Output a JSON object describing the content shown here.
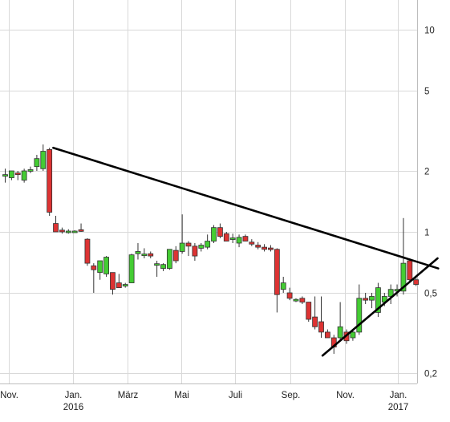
{
  "chart_data": {
    "type": "candlestick",
    "y_scale": "log",
    "ylim": [
      0.18,
      14
    ],
    "y_ticks": [
      {
        "value": 10,
        "label": "10"
      },
      {
        "value": 5,
        "label": "5"
      },
      {
        "value": 2,
        "label": "2"
      },
      {
        "value": 1,
        "label": "1"
      },
      {
        "value": 0.5,
        "label": "0,5"
      },
      {
        "value": 0.2,
        "label": "0,2"
      }
    ],
    "x_ticks": [
      {
        "index": 0.6,
        "label": "Nov."
      },
      {
        "index": 10.7,
        "label": "Jan.",
        "sublabel": "2016"
      },
      {
        "index": 19.3,
        "label": "März"
      },
      {
        "index": 27.8,
        "label": "Mai"
      },
      {
        "index": 36.3,
        "label": "Juli"
      },
      {
        "index": 45.1,
        "label": "Sep."
      },
      {
        "index": 53.8,
        "label": "Nov."
      },
      {
        "index": 62.1,
        "label": "Jan.",
        "sublabel": "2017"
      }
    ],
    "x_range": [
      0,
      68.5
    ],
    "candles": [
      {
        "o": 1.9,
        "h": 2.05,
        "l": 1.75,
        "c": 1.9
      },
      {
        "o": 1.85,
        "h": 2.0,
        "l": 1.8,
        "c": 2.0
      },
      {
        "o": 1.95,
        "h": 2.0,
        "l": 1.8,
        "c": 1.92
      },
      {
        "o": 1.8,
        "h": 2.05,
        "l": 1.75,
        "c": 2.0
      },
      {
        "o": 2.0,
        "h": 2.1,
        "l": 1.95,
        "c": 2.02
      },
      {
        "o": 2.1,
        "h": 2.4,
        "l": 2.0,
        "c": 2.3
      },
      {
        "o": 2.05,
        "h": 2.7,
        "l": 2.0,
        "c": 2.5
      },
      {
        "o": 2.55,
        "h": 2.6,
        "l": 1.2,
        "c": 1.25
      },
      {
        "o": 1.1,
        "h": 1.2,
        "l": 1.0,
        "c": 1.0
      },
      {
        "o": 1.02,
        "h": 1.05,
        "l": 0.98,
        "c": 1.0
      },
      {
        "o": 1.0,
        "h": 1.03,
        "l": 0.98,
        "c": 1.0
      },
      {
        "o": 1.0,
        "h": 1.02,
        "l": 0.99,
        "c": 1.0
      },
      {
        "o": 1.02,
        "h": 1.1,
        "l": 1.0,
        "c": 1.01
      },
      {
        "o": 0.92,
        "h": 0.93,
        "l": 0.68,
        "c": 0.7
      },
      {
        "o": 0.68,
        "h": 0.7,
        "l": 0.5,
        "c": 0.65
      },
      {
        "o": 0.63,
        "h": 0.72,
        "l": 0.58,
        "c": 0.72
      },
      {
        "o": 0.62,
        "h": 0.76,
        "l": 0.6,
        "c": 0.75
      },
      {
        "o": 0.63,
        "h": 0.63,
        "l": 0.49,
        "c": 0.52
      },
      {
        "o": 0.56,
        "h": 0.62,
        "l": 0.53,
        "c": 0.53
      },
      {
        "o": 0.54,
        "h": 0.56,
        "l": 0.53,
        "c": 0.55
      },
      {
        "o": 0.56,
        "h": 0.78,
        "l": 0.56,
        "c": 0.77
      },
      {
        "o": 0.78,
        "h": 0.88,
        "l": 0.73,
        "c": 0.8
      },
      {
        "o": 0.77,
        "h": 0.83,
        "l": 0.74,
        "c": 0.77
      },
      {
        "o": 0.78,
        "h": 0.8,
        "l": 0.74,
        "c": 0.76
      },
      {
        "o": 0.69,
        "h": 0.72,
        "l": 0.6,
        "c": 0.69
      },
      {
        "o": 0.66,
        "h": 0.7,
        "l": 0.64,
        "c": 0.69
      },
      {
        "o": 0.66,
        "h": 0.82,
        "l": 0.65,
        "c": 0.82
      },
      {
        "o": 0.81,
        "h": 0.85,
        "l": 0.7,
        "c": 0.72
      },
      {
        "o": 0.8,
        "h": 1.22,
        "l": 0.78,
        "c": 0.88
      },
      {
        "o": 0.88,
        "h": 0.9,
        "l": 0.76,
        "c": 0.85
      },
      {
        "o": 0.85,
        "h": 0.88,
        "l": 0.72,
        "c": 0.76
      },
      {
        "o": 0.83,
        "h": 0.88,
        "l": 0.8,
        "c": 0.86
      },
      {
        "o": 0.84,
        "h": 0.97,
        "l": 0.82,
        "c": 0.9
      },
      {
        "o": 0.9,
        "h": 1.08,
        "l": 0.88,
        "c": 1.05
      },
      {
        "o": 1.05,
        "h": 1.1,
        "l": 0.93,
        "c": 0.95
      },
      {
        "o": 0.98,
        "h": 1.0,
        "l": 0.9,
        "c": 0.9
      },
      {
        "o": 0.92,
        "h": 0.98,
        "l": 0.88,
        "c": 0.93
      },
      {
        "o": 0.88,
        "h": 0.97,
        "l": 0.84,
        "c": 0.94
      },
      {
        "o": 0.95,
        "h": 0.97,
        "l": 0.9,
        "c": 0.9
      },
      {
        "o": 0.89,
        "h": 0.92,
        "l": 0.85,
        "c": 0.87
      },
      {
        "o": 0.86,
        "h": 0.89,
        "l": 0.82,
        "c": 0.84
      },
      {
        "o": 0.84,
        "h": 0.87,
        "l": 0.8,
        "c": 0.82
      },
      {
        "o": 0.83,
        "h": 0.86,
        "l": 0.8,
        "c": 0.82
      },
      {
        "o": 0.82,
        "h": 0.83,
        "l": 0.4,
        "c": 0.49
      },
      {
        "o": 0.52,
        "h": 0.6,
        "l": 0.5,
        "c": 0.56
      },
      {
        "o": 0.5,
        "h": 0.53,
        "l": 0.46,
        "c": 0.47
      },
      {
        "o": 0.46,
        "h": 0.47,
        "l": 0.45,
        "c": 0.46
      },
      {
        "o": 0.47,
        "h": 0.48,
        "l": 0.44,
        "c": 0.45
      },
      {
        "o": 0.45,
        "h": 0.45,
        "l": 0.36,
        "c": 0.37
      },
      {
        "o": 0.38,
        "h": 0.48,
        "l": 0.33,
        "c": 0.34
      },
      {
        "o": 0.36,
        "h": 0.48,
        "l": 0.3,
        "c": 0.32
      },
      {
        "o": 0.32,
        "h": 0.33,
        "l": 0.3,
        "c": 0.3
      },
      {
        "o": 0.3,
        "h": 0.31,
        "l": 0.25,
        "c": 0.27
      },
      {
        "o": 0.3,
        "h": 0.45,
        "l": 0.29,
        "c": 0.34
      },
      {
        "o": 0.32,
        "h": 0.33,
        "l": 0.28,
        "c": 0.29
      },
      {
        "o": 0.3,
        "h": 0.33,
        "l": 0.29,
        "c": 0.32
      },
      {
        "o": 0.32,
        "h": 0.55,
        "l": 0.31,
        "c": 0.47
      },
      {
        "o": 0.47,
        "h": 0.5,
        "l": 0.44,
        "c": 0.46
      },
      {
        "o": 0.46,
        "h": 0.5,
        "l": 0.42,
        "c": 0.48
      },
      {
        "o": 0.4,
        "h": 0.56,
        "l": 0.38,
        "c": 0.53
      },
      {
        "o": 0.45,
        "h": 0.5,
        "l": 0.43,
        "c": 0.48
      },
      {
        "o": 0.48,
        "h": 0.55,
        "l": 0.44,
        "c": 0.52
      },
      {
        "o": 0.51,
        "h": 0.55,
        "l": 0.48,
        "c": 0.52
      },
      {
        "o": 0.51,
        "h": 1.17,
        "l": 0.49,
        "c": 0.7
      },
      {
        "o": 0.72,
        "h": 0.74,
        "l": 0.56,
        "c": 0.58
      },
      {
        "o": 0.58,
        "h": 0.6,
        "l": 0.54,
        "c": 0.55
      }
    ],
    "trendlines": [
      {
        "x1": 7.6,
        "y1": 2.6,
        "x2": 68.5,
        "y2": 0.66
      },
      {
        "x1": 50.2,
        "y1": 0.245,
        "x2": 68.4,
        "y2": 0.74
      }
    ],
    "grid": true,
    "colors": {
      "up": "#44cc33",
      "down": "#dd3333",
      "outline": "#333333",
      "trendline": "#000000",
      "grid": "#d9d9d9"
    }
  }
}
